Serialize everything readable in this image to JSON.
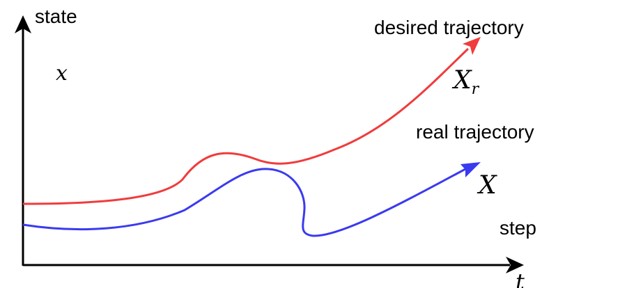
{
  "axes": {
    "y_label": "state",
    "x_label": "step",
    "x_var": "t",
    "state_var": "x"
  },
  "curves": {
    "desired": {
      "label": "desired trajectory",
      "symbol_base": "X",
      "symbol_sub": "r",
      "color": "#f03c3c"
    },
    "real": {
      "label": "real trajectory",
      "symbol": "X",
      "color": "#3a3af0"
    }
  }
}
